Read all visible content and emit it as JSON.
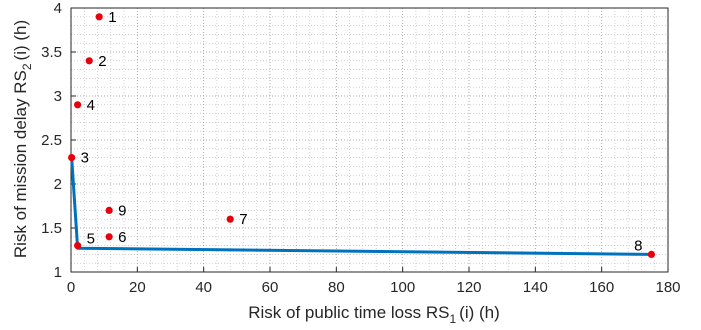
{
  "chart_data": {
    "type": "scatter",
    "xlabel": "Risk of public time loss RS",
    "xlabel_sub": "1",
    "xlabel_tail": "(i) (h)",
    "ylabel": "Risk of mission delay RS",
    "ylabel_sub": "2",
    "ylabel_tail": "(i) (h)",
    "xlim": [
      0,
      180
    ],
    "ylim": [
      1,
      4
    ],
    "xticks": [
      0,
      20,
      40,
      60,
      80,
      100,
      120,
      140,
      160,
      180
    ],
    "yticks": [
      1,
      1.5,
      2,
      2.5,
      3,
      3.5,
      4
    ],
    "grid": true,
    "minor_grid": true,
    "point_color": "#e8000b",
    "line_color": "#0072bd",
    "points": [
      {
        "label": "1",
        "x": 8.5,
        "y": 3.9
      },
      {
        "label": "2",
        "x": 5.5,
        "y": 3.4
      },
      {
        "label": "3",
        "x": 0.2,
        "y": 2.3
      },
      {
        "label": "4",
        "x": 2.0,
        "y": 2.9
      },
      {
        "label": "5",
        "x": 2.0,
        "y": 1.3
      },
      {
        "label": "6",
        "x": 11.5,
        "y": 1.4
      },
      {
        "label": "7",
        "x": 48.0,
        "y": 1.6
      },
      {
        "label": "8",
        "x": 175.0,
        "y": 1.2
      },
      {
        "label": "9",
        "x": 11.5,
        "y": 1.7
      }
    ],
    "frontier": [
      {
        "x": 0.2,
        "y": 2.3
      },
      {
        "x": 2.0,
        "y": 1.27
      },
      {
        "x": 175.0,
        "y": 1.2
      }
    ]
  }
}
